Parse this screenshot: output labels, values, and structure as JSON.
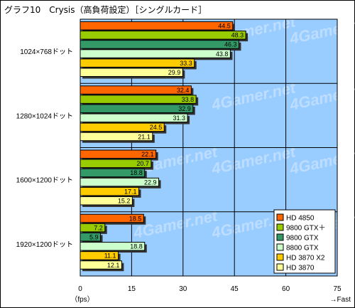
{
  "chart_data": {
    "type": "bar",
    "orientation": "horizontal",
    "title": "グラフ10　Crysis（高負荷設定）［シングルカード］",
    "categories": [
      "1024×768ドット",
      "1280×1024ドット",
      "1600×1200ドット",
      "1920×1200ドット"
    ],
    "series": [
      {
        "name": "HD 4850",
        "color": "#ff6600",
        "values": [
          44.5,
          32.4,
          22.1,
          18.5
        ]
      },
      {
        "name": "9800 GTX＋",
        "color": "#99cc00",
        "values": [
          48.3,
          33.8,
          20.7,
          7.2
        ]
      },
      {
        "name": "9800 GTX",
        "color": "#339966",
        "values": [
          46.3,
          32.9,
          18.8,
          5.9
        ]
      },
      {
        "name": "8800 GTX",
        "color": "#ccffcc",
        "values": [
          43.8,
          31.3,
          22.9,
          18.8
        ]
      },
      {
        "name": "HD 3870 X2",
        "color": "#ffcc00",
        "values": [
          33.3,
          24.5,
          17.1,
          11.1
        ]
      },
      {
        "name": "HD 3870",
        "color": "#ffff99",
        "values": [
          29.9,
          21.1,
          15.2,
          12.1
        ]
      }
    ],
    "xticks": [
      0,
      15,
      30,
      45,
      60,
      75
    ],
    "xlim": [
      0,
      75
    ],
    "xunit": "（fps）",
    "xdirection": "→Fast",
    "plot_background": "#99ccff",
    "grid": true,
    "legend_position": "bottom-right",
    "watermark": "4Gamer.net"
  }
}
